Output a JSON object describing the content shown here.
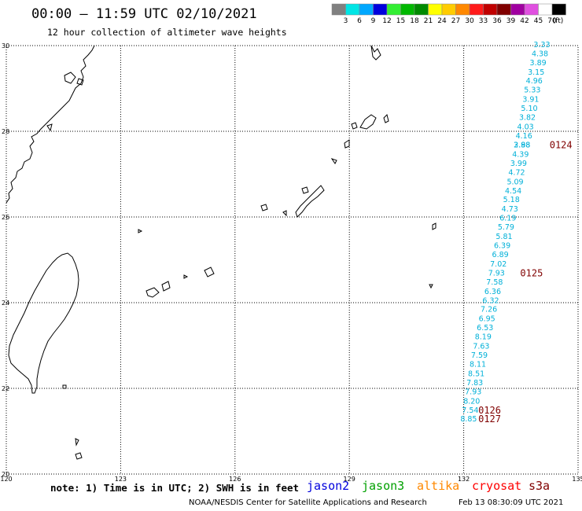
{
  "header": {
    "title": "00:00 – 11:59 UTC 02/10/2021",
    "subtitle": "12 hour collection of altimeter wave heights"
  },
  "legend": {
    "unit": "(ft)",
    "items": [
      {
        "label": "3",
        "color": "#808080"
      },
      {
        "label": "6",
        "color": "#00e5e5"
      },
      {
        "label": "9",
        "color": "#00a8ff"
      },
      {
        "label": "12",
        "color": "#0000dd"
      },
      {
        "label": "15",
        "color": "#33ee33"
      },
      {
        "label": "18",
        "color": "#00b800"
      },
      {
        "label": "21",
        "color": "#008a00"
      },
      {
        "label": "24",
        "color": "#ffff00"
      },
      {
        "label": "27",
        "color": "#ffcc00"
      },
      {
        "label": "30",
        "color": "#ff8800"
      },
      {
        "label": "33",
        "color": "#ff1a1a"
      },
      {
        "label": "36",
        "color": "#c00000"
      },
      {
        "label": "39",
        "color": "#800000"
      },
      {
        "label": "42",
        "color": "#a000a0"
      },
      {
        "label": "45",
        "color": "#e050e0"
      },
      {
        "label": "70",
        "color": "#ffffff"
      },
      {
        "label": "",
        "color": "#000000"
      }
    ]
  },
  "map": {
    "lat_labels": [
      "30",
      "28",
      "26",
      "24",
      "22",
      "20"
    ],
    "lon_labels": [
      "120",
      "123",
      "126",
      "129",
      "132",
      "135"
    ],
    "observation_color": "#00b0d8",
    "time_label_color": "#800000",
    "observations": [
      {
        "lat": 30.02,
        "lon": 134.05,
        "value": "3.33"
      },
      {
        "lat": 29.81,
        "lon": 134.0,
        "value": "4.38"
      },
      {
        "lat": 29.6,
        "lon": 133.95,
        "value": "3.89"
      },
      {
        "lat": 29.38,
        "lon": 133.9,
        "value": "3.15"
      },
      {
        "lat": 29.17,
        "lon": 133.85,
        "value": "4.96"
      },
      {
        "lat": 28.96,
        "lon": 133.8,
        "value": "5.33"
      },
      {
        "lat": 28.74,
        "lon": 133.76,
        "value": "3.91"
      },
      {
        "lat": 28.53,
        "lon": 133.72,
        "value": "5.10"
      },
      {
        "lat": 28.32,
        "lon": 133.67,
        "value": "3.82"
      },
      {
        "lat": 28.1,
        "lon": 133.62,
        "value": "4.03"
      },
      {
        "lat": 27.89,
        "lon": 133.58,
        "value": "4.16"
      },
      {
        "lat": 27.68,
        "lon": 133.53,
        "value": "2.98"
      },
      {
        "lat": 27.68,
        "lon": 133.53,
        "value": "3.88"
      },
      {
        "lat": 27.46,
        "lon": 133.49,
        "value": "4.39"
      },
      {
        "lat": 27.25,
        "lon": 133.44,
        "value": "3.99"
      },
      {
        "lat": 27.04,
        "lon": 133.39,
        "value": "4.72"
      },
      {
        "lat": 26.82,
        "lon": 133.35,
        "value": "5.09"
      },
      {
        "lat": 26.61,
        "lon": 133.3,
        "value": "4.54"
      },
      {
        "lat": 26.4,
        "lon": 133.25,
        "value": "5.18"
      },
      {
        "lat": 26.18,
        "lon": 133.21,
        "value": "4.73"
      },
      {
        "lat": 25.97,
        "lon": 133.16,
        "value": "6.19"
      },
      {
        "lat": 25.76,
        "lon": 133.11,
        "value": "5.79"
      },
      {
        "lat": 25.54,
        "lon": 133.06,
        "value": "5.81"
      },
      {
        "lat": 25.33,
        "lon": 133.01,
        "value": "6.39"
      },
      {
        "lat": 25.12,
        "lon": 132.96,
        "value": "6.89"
      },
      {
        "lat": 24.9,
        "lon": 132.91,
        "value": "7.02"
      },
      {
        "lat": 24.69,
        "lon": 132.86,
        "value": "7.93"
      },
      {
        "lat": 24.48,
        "lon": 132.81,
        "value": "7.58"
      },
      {
        "lat": 24.26,
        "lon": 132.76,
        "value": "6.36"
      },
      {
        "lat": 24.05,
        "lon": 132.71,
        "value": "6.32"
      },
      {
        "lat": 23.84,
        "lon": 132.66,
        "value": "7.26"
      },
      {
        "lat": 23.62,
        "lon": 132.61,
        "value": "6.95"
      },
      {
        "lat": 23.41,
        "lon": 132.56,
        "value": "6.53"
      },
      {
        "lat": 23.2,
        "lon": 132.51,
        "value": "8.19"
      },
      {
        "lat": 22.98,
        "lon": 132.46,
        "value": "7.63"
      },
      {
        "lat": 22.77,
        "lon": 132.41,
        "value": "7.59"
      },
      {
        "lat": 22.56,
        "lon": 132.37,
        "value": "8.11"
      },
      {
        "lat": 22.34,
        "lon": 132.33,
        "value": "8.51"
      },
      {
        "lat": 22.13,
        "lon": 132.29,
        "value": "7.83"
      },
      {
        "lat": 21.92,
        "lon": 132.25,
        "value": "7.93"
      },
      {
        "lat": 21.7,
        "lon": 132.21,
        "value": "8.20"
      },
      {
        "lat": 21.49,
        "lon": 132.17,
        "value": "7.54"
      },
      {
        "lat": 21.28,
        "lon": 132.13,
        "value": "8.85"
      }
    ],
    "time_labels": [
      {
        "lat": 27.68,
        "lon": 134.55,
        "text": "0124"
      },
      {
        "lat": 24.69,
        "lon": 133.78,
        "text": "0125"
      },
      {
        "lat": 21.49,
        "lon": 132.68,
        "text": "0126"
      },
      {
        "lat": 21.28,
        "lon": 132.68,
        "text": "0127"
      }
    ]
  },
  "footer": {
    "note": "note: 1) Time is in UTC; 2) SWH is in feet",
    "satellites": [
      {
        "name": "jason2",
        "color": "#0000dd"
      },
      {
        "name": "jason3",
        "color": "#00a000"
      },
      {
        "name": "altika",
        "color": "#ff8800"
      },
      {
        "name": "cryosat",
        "color": "#ff0000"
      },
      {
        "name": "s3a",
        "color": "#800000"
      }
    ],
    "credit": "NOAA/NESDIS Center for Satellite Applications and Research",
    "timestamp": "Feb 13 08:30:09 UTC 2021"
  }
}
